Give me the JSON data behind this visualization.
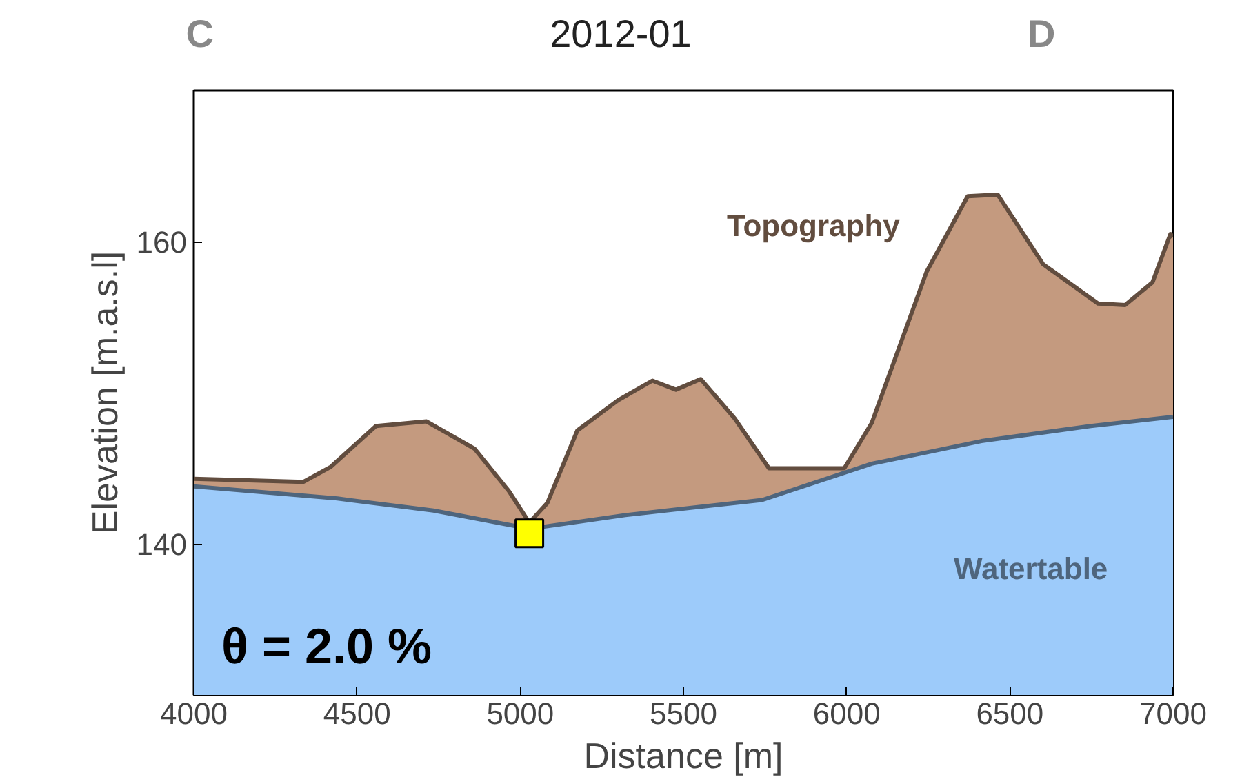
{
  "chart_data": {
    "type": "area",
    "title": "2012-01",
    "xlabel": "Distance [m]",
    "ylabel": "Elevation [m.a.s.l]",
    "xlim": [
      4000,
      7000
    ],
    "ylim": [
      130,
      170
    ],
    "xticks": [
      4000,
      4500,
      5000,
      5500,
      6000,
      6500,
      7000
    ],
    "yticks": [
      140,
      160
    ],
    "grid": false,
    "series": [
      {
        "name": "Topography",
        "color": "#c49a7f",
        "x": [
          4000,
          4336,
          4420,
          4558,
          4713,
          4860,
          4965,
          5028,
          5083,
          5175,
          5300,
          5405,
          5477,
          5553,
          5657,
          5762,
          5993,
          6077,
          6245,
          6371,
          6463,
          6602,
          6770,
          6853,
          6937,
          6992,
          7000
        ],
        "values": [
          144.3,
          144.1,
          145.1,
          147.8,
          148.1,
          146.3,
          143.5,
          141.4,
          142.7,
          147.5,
          149.5,
          150.8,
          150.2,
          150.9,
          148.3,
          145.0,
          145.0,
          148.0,
          158.0,
          163.0,
          163.1,
          158.5,
          155.9,
          155.8,
          157.3,
          160.5,
          160.3
        ]
      },
      {
        "name": "Watertable",
        "color": "#9dcbfa",
        "x": [
          4000,
          4440,
          4734,
          5028,
          5322,
          5741,
          6077,
          6413,
          6748,
          7000
        ],
        "values": [
          143.8,
          143.0,
          142.2,
          141.0,
          141.9,
          142.9,
          145.3,
          146.8,
          147.8,
          148.4
        ]
      },
      {
        "type": "scatter",
        "marker": "square",
        "color": "#ffff00",
        "x": [
          5028
        ],
        "values": [
          140.7
        ]
      }
    ],
    "annotations": [
      "C",
      "D",
      "θ = 2.0 %"
    ]
  }
}
